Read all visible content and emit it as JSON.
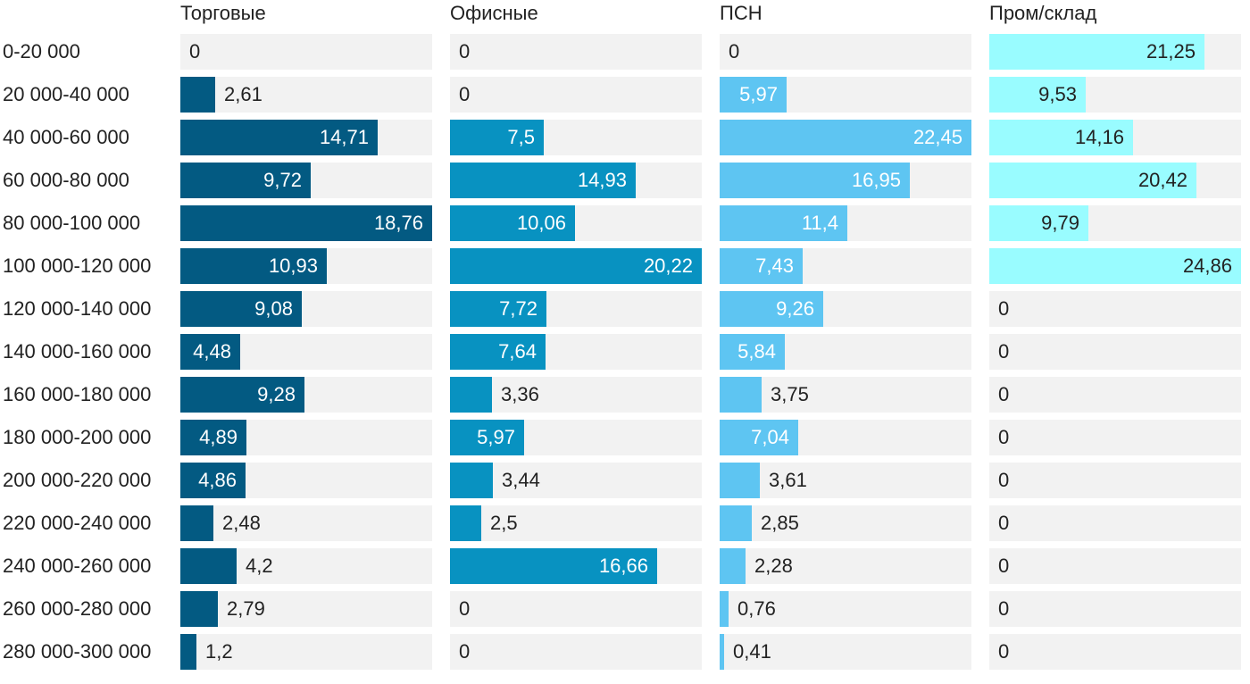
{
  "chart_data": [
    {
      "type": "bar",
      "orientation": "horizontal",
      "title": "Торговые",
      "color": "#035a82",
      "categories": [
        "0-20 000",
        "20 000-40 000",
        "40 000-60 000",
        "60 000-80 000",
        "80 000-100 000",
        "100 000-120 000",
        "120 000-140 000",
        "140 000-160 000",
        "160 000-180 000",
        "180 000-200 000",
        "200 000-220 000",
        "220 000-240 000",
        "240 000-260 000",
        "260 000-280 000",
        "280 000-300 000"
      ],
      "values": [
        0,
        2.61,
        14.71,
        9.72,
        18.76,
        10.93,
        9.08,
        4.48,
        9.28,
        4.89,
        4.86,
        2.48,
        4.2,
        2.79,
        1.2
      ],
      "value_labels": [
        "0",
        "2,61",
        "14,71",
        "9,72",
        "18,76",
        "10,93",
        "9,08",
        "4,48",
        "9,28",
        "4,89",
        "4,86",
        "2,48",
        "4,2",
        "2,79",
        "1,2"
      ],
      "xlim": [
        0,
        18.76
      ]
    },
    {
      "type": "bar",
      "orientation": "horizontal",
      "title": "Офисные",
      "color": "#0892c1",
      "categories": [
        "0-20 000",
        "20 000-40 000",
        "40 000-60 000",
        "60 000-80 000",
        "80 000-100 000",
        "100 000-120 000",
        "120 000-140 000",
        "140 000-160 000",
        "160 000-180 000",
        "180 000-200 000",
        "200 000-220 000",
        "220 000-240 000",
        "240 000-260 000",
        "260 000-280 000",
        "280 000-300 000"
      ],
      "values": [
        0,
        0,
        7.5,
        14.93,
        10.06,
        20.22,
        7.72,
        7.64,
        3.36,
        5.97,
        3.44,
        2.5,
        16.66,
        0,
        0
      ],
      "value_labels": [
        "0",
        "0",
        "7,5",
        "14,93",
        "10,06",
        "20,22",
        "7,72",
        "7,64",
        "3,36",
        "5,97",
        "3,44",
        "2,5",
        "16,66",
        "0",
        "0"
      ],
      "xlim": [
        0,
        20.22
      ]
    },
    {
      "type": "bar",
      "orientation": "horizontal",
      "title": "ПСН",
      "color": "#5ec5f2",
      "categories": [
        "0-20 000",
        "20 000-40 000",
        "40 000-60 000",
        "60 000-80 000",
        "80 000-100 000",
        "100 000-120 000",
        "120 000-140 000",
        "140 000-160 000",
        "160 000-180 000",
        "180 000-200 000",
        "200 000-220 000",
        "220 000-240 000",
        "240 000-260 000",
        "260 000-280 000",
        "280 000-300 000"
      ],
      "values": [
        0,
        5.97,
        22.45,
        16.95,
        11.4,
        7.43,
        9.26,
        5.84,
        3.75,
        7.04,
        3.61,
        2.85,
        2.28,
        0.76,
        0.41
      ],
      "value_labels": [
        "0",
        "5,97",
        "22,45",
        "16,95",
        "11,4",
        "7,43",
        "9,26",
        "5,84",
        "3,75",
        "7,04",
        "3,61",
        "2,85",
        "2,28",
        "0,76",
        "0,41"
      ],
      "xlim": [
        0,
        22.45
      ]
    },
    {
      "type": "bar",
      "orientation": "horizontal",
      "title": "Пром/склад",
      "color": "#99fcff",
      "categories": [
        "0-20 000",
        "20 000-40 000",
        "40 000-60 000",
        "60 000-80 000",
        "80 000-100 000",
        "100 000-120 000",
        "120 000-140 000",
        "140 000-160 000",
        "160 000-180 000",
        "180 000-200 000",
        "200 000-220 000",
        "220 000-240 000",
        "240 000-260 000",
        "260 000-280 000",
        "280 000-300 000"
      ],
      "values": [
        21.25,
        9.53,
        14.16,
        20.42,
        9.79,
        24.86,
        0,
        0,
        0,
        0,
        0,
        0,
        0,
        0,
        0
      ],
      "value_labels": [
        "21,25",
        "9,53",
        "14,16",
        "20,42",
        "9,79",
        "24,86",
        "0",
        "0",
        "0",
        "0",
        "0",
        "0",
        "0",
        "0",
        "0"
      ],
      "xlim": [
        0,
        24.86
      ]
    }
  ],
  "track_color": "#f2f2f2"
}
